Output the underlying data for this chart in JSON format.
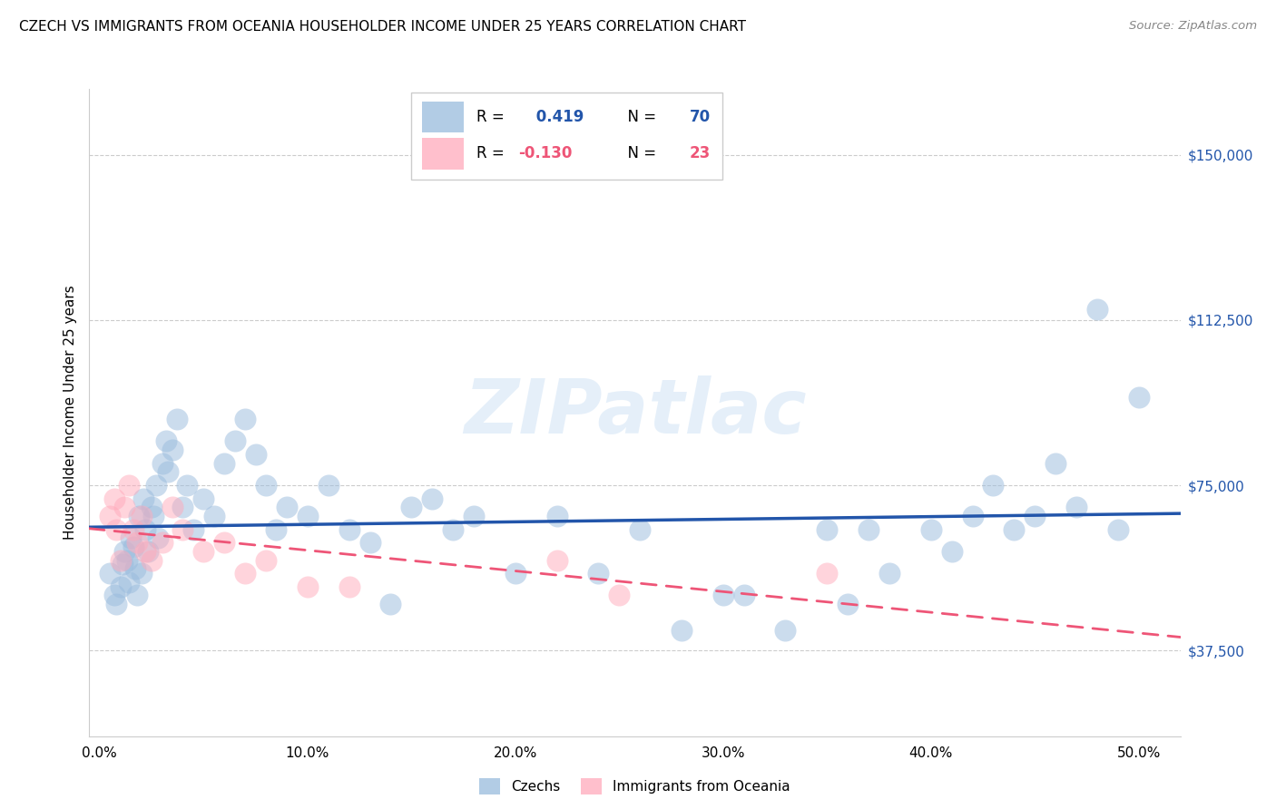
{
  "title": "CZECH VS IMMIGRANTS FROM OCEANIA HOUSEHOLDER INCOME UNDER 25 YEARS CORRELATION CHART",
  "source": "Source: ZipAtlas.com",
  "xlabel_values": [
    0.0,
    10.0,
    20.0,
    30.0,
    40.0,
    50.0
  ],
  "ylabel_ticks": [
    "$37,500",
    "$75,000",
    "$112,500",
    "$150,000"
  ],
  "ylabel_values": [
    37500,
    75000,
    112500,
    150000
  ],
  "ylim": [
    18000,
    165000
  ],
  "xlim": [
    -0.5,
    52
  ],
  "watermark": "ZIPatlас",
  "legend1_label": "Czechs",
  "legend2_label": "Immigrants from Oceania",
  "r1": 0.419,
  "n1": 70,
  "r2": -0.13,
  "n2": 23,
  "blue_color": "#99BBDD",
  "pink_color": "#FFAABB",
  "blue_line_color": "#2255AA",
  "pink_line_color": "#EE5577",
  "blue_scatter_x": [
    0.5,
    0.7,
    0.8,
    1.0,
    1.1,
    1.2,
    1.3,
    1.4,
    1.5,
    1.6,
    1.7,
    1.8,
    1.9,
    2.0,
    2.1,
    2.2,
    2.3,
    2.5,
    2.6,
    2.7,
    2.8,
    3.0,
    3.2,
    3.3,
    3.5,
    3.7,
    4.0,
    4.2,
    4.5,
    5.0,
    5.5,
    6.0,
    6.5,
    7.0,
    7.5,
    8.0,
    8.5,
    9.0,
    10.0,
    11.0,
    12.0,
    13.0,
    14.0,
    15.0,
    16.0,
    17.0,
    18.0,
    20.0,
    22.0,
    24.0,
    26.0,
    28.0,
    30.0,
    33.0,
    35.0,
    37.0,
    40.0,
    42.0,
    43.0,
    45.0,
    46.0,
    47.0,
    48.0,
    49.0,
    50.0,
    44.0,
    41.0,
    38.0,
    36.0,
    31.0
  ],
  "blue_scatter_y": [
    55000,
    50000,
    48000,
    52000,
    57000,
    60000,
    58000,
    53000,
    63000,
    61000,
    56000,
    50000,
    68000,
    55000,
    72000,
    65000,
    60000,
    70000,
    68000,
    75000,
    63000,
    80000,
    85000,
    78000,
    83000,
    90000,
    70000,
    75000,
    65000,
    72000,
    68000,
    80000,
    85000,
    90000,
    82000,
    75000,
    65000,
    70000,
    68000,
    75000,
    65000,
    62000,
    48000,
    70000,
    72000,
    65000,
    68000,
    55000,
    68000,
    55000,
    65000,
    42000,
    50000,
    42000,
    65000,
    65000,
    65000,
    68000,
    75000,
    68000,
    80000,
    70000,
    115000,
    65000,
    95000,
    65000,
    60000,
    55000,
    48000,
    50000
  ],
  "pink_scatter_x": [
    0.5,
    0.7,
    0.8,
    1.0,
    1.2,
    1.4,
    1.6,
    1.8,
    2.0,
    2.2,
    2.5,
    3.0,
    3.5,
    4.0,
    5.0,
    6.0,
    7.0,
    8.0,
    10.0,
    12.0,
    22.0,
    25.0,
    35.0
  ],
  "pink_scatter_y": [
    68000,
    72000,
    65000,
    58000,
    70000,
    75000,
    65000,
    62000,
    68000,
    60000,
    58000,
    62000,
    70000,
    65000,
    60000,
    62000,
    55000,
    58000,
    52000,
    52000,
    58000,
    50000,
    55000
  ],
  "background_color": "#FFFFFF",
  "grid_color": "#CCCCCC"
}
